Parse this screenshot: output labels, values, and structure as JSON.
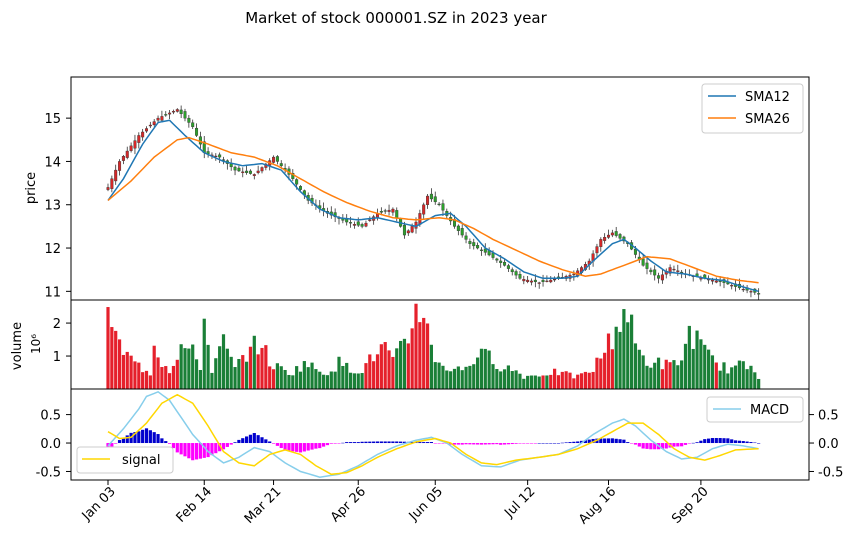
{
  "title": "Market of stock 000001.SZ in 2023 year",
  "colors": {
    "sma12": "#1f77b4",
    "sma26": "#ff7f0e",
    "candle_up": "#d62728",
    "candle_down": "#2ca02c",
    "vol_up": "#e5202b",
    "vol_down": "#1a7f37",
    "macd": "#87ceeb",
    "signal": "#ffd700",
    "hist_pos": "#0000cd",
    "hist_neg": "#ff00ff"
  },
  "chart_data": [
    {
      "type": "candlestick",
      "ylabel": "price",
      "ylim": [
        10.8,
        15.95
      ],
      "yticks": [
        "11",
        "12",
        "13",
        "14",
        "15"
      ],
      "legend": {
        "placement": "top-right",
        "entries": [
          "SMA12",
          "SMA26"
        ]
      },
      "price_keypoints": [
        [
          0,
          13.4
        ],
        [
          3,
          14.0
        ],
        [
          8,
          14.6
        ],
        [
          13,
          15.0
        ],
        [
          18,
          15.2
        ],
        [
          22,
          14.8
        ],
        [
          25,
          14.2
        ],
        [
          29,
          14.1
        ],
        [
          33,
          13.8
        ],
        [
          38,
          13.7
        ],
        [
          43,
          14.1
        ],
        [
          48,
          13.6
        ],
        [
          52,
          13.1
        ],
        [
          57,
          12.8
        ],
        [
          62,
          12.6
        ],
        [
          66,
          12.5
        ],
        [
          70,
          12.8
        ],
        [
          74,
          12.9
        ],
        [
          77,
          12.3
        ],
        [
          80,
          12.6
        ],
        [
          83,
          13.2
        ],
        [
          86,
          13.0
        ],
        [
          90,
          12.5
        ],
        [
          94,
          12.1
        ],
        [
          98,
          11.9
        ],
        [
          103,
          11.6
        ],
        [
          107,
          11.3
        ],
        [
          112,
          11.2
        ],
        [
          117,
          11.3
        ],
        [
          121,
          11.4
        ],
        [
          125,
          11.7
        ],
        [
          128,
          12.2
        ],
        [
          131,
          12.35
        ],
        [
          135,
          12.1
        ],
        [
          139,
          11.6
        ],
        [
          143,
          11.3
        ],
        [
          146,
          11.55
        ],
        [
          150,
          11.4
        ],
        [
          155,
          11.3
        ],
        [
          160,
          11.2
        ],
        [
          165,
          11.05
        ],
        [
          169,
          10.95
        ]
      ],
      "sma12_keypoints": [
        [
          0,
          13.1
        ],
        [
          4,
          13.6
        ],
        [
          9,
          14.4
        ],
        [
          13,
          14.9
        ],
        [
          16,
          14.95
        ],
        [
          20,
          14.6
        ],
        [
          25,
          14.2
        ],
        [
          30,
          14.0
        ],
        [
          35,
          13.9
        ],
        [
          40,
          13.95
        ],
        [
          45,
          13.8
        ],
        [
          50,
          13.3
        ],
        [
          55,
          12.9
        ],
        [
          60,
          12.7
        ],
        [
          65,
          12.65
        ],
        [
          70,
          12.7
        ],
        [
          75,
          12.6
        ],
        [
          80,
          12.5
        ],
        [
          85,
          12.75
        ],
        [
          89,
          12.8
        ],
        [
          93,
          12.5
        ],
        [
          98,
          12.0
        ],
        [
          103,
          11.75
        ],
        [
          108,
          11.45
        ],
        [
          113,
          11.3
        ],
        [
          118,
          11.3
        ],
        [
          122,
          11.35
        ],
        [
          126,
          11.7
        ],
        [
          131,
          12.1
        ],
        [
          134,
          12.2
        ],
        [
          137,
          12.0
        ],
        [
          141,
          11.7
        ],
        [
          145,
          11.45
        ],
        [
          150,
          11.4
        ],
        [
          155,
          11.3
        ],
        [
          160,
          11.25
        ],
        [
          165,
          11.1
        ],
        [
          169,
          11.0
        ]
      ],
      "sma26_keypoints": [
        [
          0,
          13.1
        ],
        [
          6,
          13.55
        ],
        [
          12,
          14.1
        ],
        [
          18,
          14.5
        ],
        [
          21,
          14.55
        ],
        [
          26,
          14.4
        ],
        [
          32,
          14.2
        ],
        [
          38,
          14.1
        ],
        [
          44,
          13.9
        ],
        [
          50,
          13.6
        ],
        [
          56,
          13.3
        ],
        [
          62,
          13.05
        ],
        [
          68,
          12.85
        ],
        [
          74,
          12.7
        ],
        [
          80,
          12.65
        ],
        [
          86,
          12.7
        ],
        [
          90,
          12.65
        ],
        [
          95,
          12.45
        ],
        [
          100,
          12.2
        ],
        [
          106,
          11.95
        ],
        [
          112,
          11.7
        ],
        [
          118,
          11.5
        ],
        [
          124,
          11.35
        ],
        [
          128,
          11.4
        ],
        [
          134,
          11.6
        ],
        [
          140,
          11.8
        ],
        [
          146,
          11.75
        ],
        [
          152,
          11.55
        ],
        [
          158,
          11.35
        ],
        [
          164,
          11.25
        ],
        [
          169,
          11.2
        ]
      ]
    },
    {
      "type": "bar",
      "ylabel": "volume",
      "unit_label": "10⁶",
      "ylim": [
        0,
        2.7
      ],
      "yticks": [
        "1",
        "2"
      ],
      "volume_keypoints": [
        [
          0,
          2.2
        ],
        [
          1,
          2.2
        ],
        [
          2,
          1.6
        ],
        [
          3,
          1.3
        ],
        [
          5,
          1.0
        ],
        [
          8,
          0.7
        ],
        [
          11,
          0.5
        ],
        [
          12,
          1.5
        ],
        [
          14,
          0.8
        ],
        [
          16,
          0.6
        ],
        [
          19,
          1.3
        ],
        [
          22,
          1.1
        ],
        [
          24,
          0.7
        ],
        [
          25,
          2.1
        ],
        [
          27,
          0.6
        ],
        [
          30,
          1.4
        ],
        [
          33,
          0.6
        ],
        [
          36,
          1.1
        ],
        [
          38,
          1.3
        ],
        [
          40,
          1.4
        ],
        [
          42,
          0.8
        ],
        [
          45,
          0.6
        ],
        [
          48,
          0.5
        ],
        [
          51,
          0.8
        ],
        [
          54,
          0.6
        ],
        [
          57,
          0.5
        ],
        [
          60,
          0.8
        ],
        [
          63,
          0.6
        ],
        [
          66,
          0.6
        ],
        [
          69,
          1.0
        ],
        [
          72,
          1.3
        ],
        [
          74,
          0.8
        ],
        [
          76,
          1.2
        ],
        [
          78,
          1.5
        ],
        [
          80,
          2.5
        ],
        [
          82,
          2.4
        ],
        [
          84,
          1.2
        ],
        [
          86,
          0.8
        ],
        [
          89,
          0.6
        ],
        [
          92,
          0.6
        ],
        [
          96,
          1.0
        ],
        [
          99,
          1.0
        ],
        [
          102,
          0.7
        ],
        [
          105,
          0.6
        ],
        [
          108,
          0.4
        ],
        [
          111,
          0.4
        ],
        [
          114,
          0.5
        ],
        [
          117,
          0.5
        ],
        [
          120,
          0.4
        ],
        [
          123,
          0.4
        ],
        [
          126,
          0.6
        ],
        [
          128,
          1.0
        ],
        [
          131,
          1.6
        ],
        [
          133,
          2.1
        ],
        [
          135,
          2.4
        ],
        [
          137,
          1.3
        ],
        [
          140,
          0.8
        ],
        [
          143,
          0.8
        ],
        [
          146,
          0.7
        ],
        [
          149,
          0.9
        ],
        [
          151,
          1.7
        ],
        [
          153,
          1.5
        ],
        [
          155,
          1.1
        ],
        [
          158,
          0.8
        ],
        [
          161,
          0.6
        ],
        [
          164,
          0.7
        ],
        [
          167,
          0.7
        ],
        [
          169,
          0.4
        ]
      ]
    },
    {
      "type": "line",
      "xlabel": "",
      "ylim": [
        -0.65,
        0.95
      ],
      "yticks": [
        "0.5",
        "0.0",
        "-0.5"
      ],
      "xticks": [
        "Jan 03",
        "Feb 14",
        "Mar 21",
        "Apr 26",
        "Jun 05",
        "Jul 12",
        "Aug 16",
        "Sep 20"
      ],
      "xtick_index": [
        0,
        25,
        43,
        65,
        85,
        109,
        130,
        154
      ],
      "legend": {
        "macd_placement": "top-right",
        "signal_placement": "bottom-left",
        "entries": [
          "MACD",
          "signal"
        ]
      },
      "macd_keypoints": [
        [
          0,
          -0.05
        ],
        [
          4,
          0.25
        ],
        [
          8,
          0.6
        ],
        [
          10,
          0.82
        ],
        [
          13,
          0.9
        ],
        [
          16,
          0.75
        ],
        [
          19,
          0.45
        ],
        [
          22,
          0.15
        ],
        [
          26,
          -0.15
        ],
        [
          30,
          -0.35
        ],
        [
          34,
          -0.25
        ],
        [
          38,
          -0.08
        ],
        [
          42,
          -0.15
        ],
        [
          46,
          -0.35
        ],
        [
          50,
          -0.5
        ],
        [
          55,
          -0.6
        ],
        [
          60,
          -0.55
        ],
        [
          65,
          -0.4
        ],
        [
          70,
          -0.2
        ],
        [
          75,
          -0.05
        ],
        [
          80,
          0.05
        ],
        [
          84,
          0.1
        ],
        [
          88,
          0.0
        ],
        [
          92,
          -0.2
        ],
        [
          97,
          -0.4
        ],
        [
          102,
          -0.42
        ],
        [
          107,
          -0.3
        ],
        [
          112,
          -0.25
        ],
        [
          117,
          -0.2
        ],
        [
          122,
          -0.05
        ],
        [
          126,
          0.15
        ],
        [
          131,
          0.35
        ],
        [
          134,
          0.42
        ],
        [
          137,
          0.3
        ],
        [
          141,
          0.05
        ],
        [
          145,
          -0.15
        ],
        [
          149,
          -0.28
        ],
        [
          153,
          -0.25
        ],
        [
          157,
          -0.1
        ],
        [
          161,
          -0.02
        ],
        [
          165,
          -0.05
        ],
        [
          169,
          -0.1
        ]
      ],
      "signal_keypoints": [
        [
          0,
          0.2
        ],
        [
          3,
          0.08
        ],
        [
          6,
          0.1
        ],
        [
          10,
          0.35
        ],
        [
          14,
          0.7
        ],
        [
          18,
          0.85
        ],
        [
          22,
          0.7
        ],
        [
          26,
          0.3
        ],
        [
          30,
          -0.15
        ],
        [
          34,
          -0.35
        ],
        [
          38,
          -0.4
        ],
        [
          42,
          -0.2
        ],
        [
          46,
          -0.12
        ],
        [
          50,
          -0.2
        ],
        [
          54,
          -0.4
        ],
        [
          58,
          -0.55
        ],
        [
          62,
          -0.52
        ],
        [
          66,
          -0.4
        ],
        [
          70,
          -0.25
        ],
        [
          75,
          -0.1
        ],
        [
          80,
          0.02
        ],
        [
          85,
          0.08
        ],
        [
          89,
          0.0
        ],
        [
          93,
          -0.2
        ],
        [
          97,
          -0.35
        ],
        [
          101,
          -0.38
        ],
        [
          106,
          -0.3
        ],
        [
          112,
          -0.25
        ],
        [
          117,
          -0.2
        ],
        [
          122,
          -0.1
        ],
        [
          127,
          0.05
        ],
        [
          131,
          0.2
        ],
        [
          135,
          0.35
        ],
        [
          139,
          0.35
        ],
        [
          143,
          0.15
        ],
        [
          147,
          -0.1
        ],
        [
          151,
          -0.25
        ],
        [
          155,
          -0.3
        ],
        [
          159,
          -0.22
        ],
        [
          163,
          -0.12
        ],
        [
          169,
          -0.1
        ]
      ]
    }
  ]
}
